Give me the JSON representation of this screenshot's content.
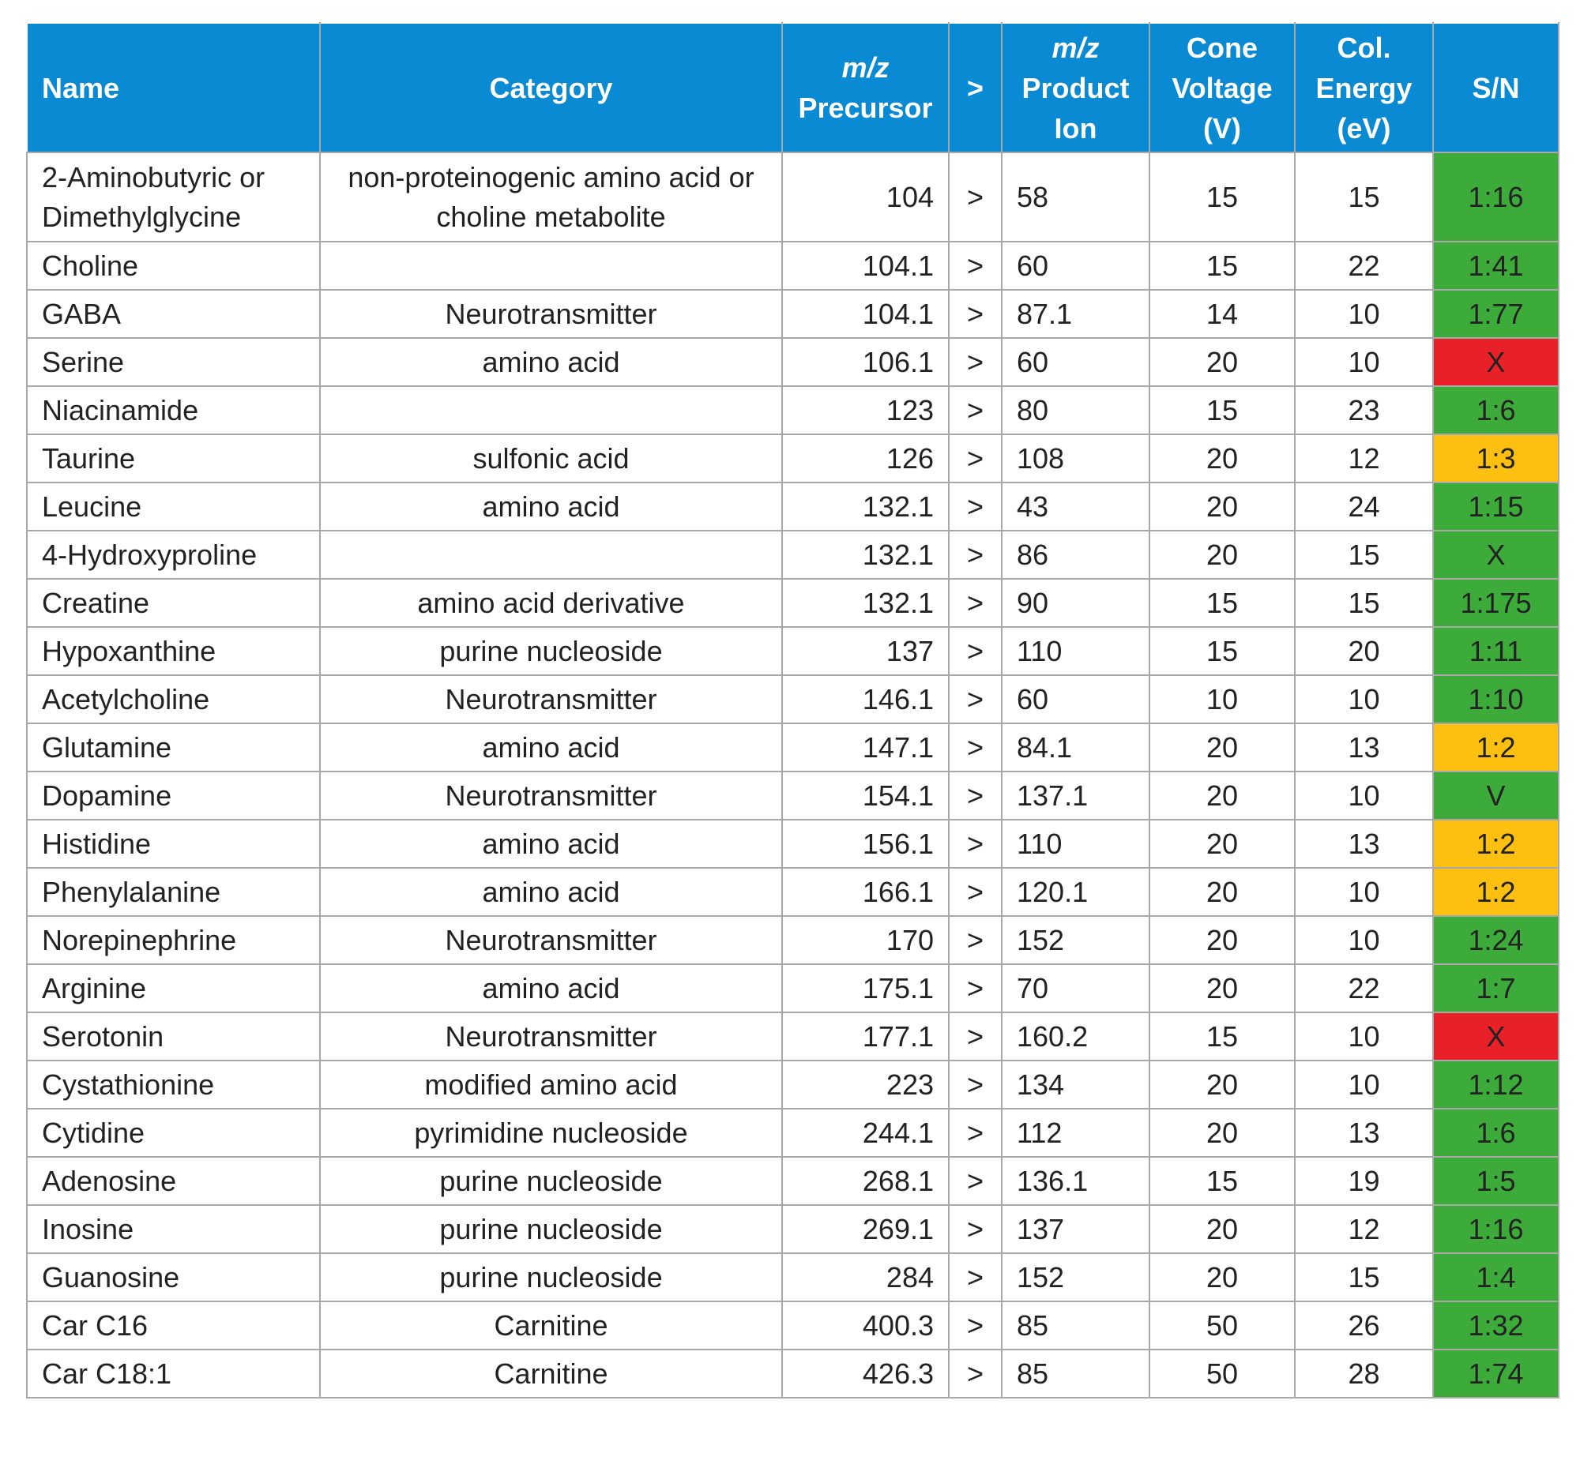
{
  "table": {
    "header": [
      "Name",
      "Category",
      {
        "italic": "m/z",
        "lines": [
          "Precursor"
        ]
      },
      ">",
      {
        "italic": "m/z",
        "lines": [
          "Product",
          "Ion"
        ]
      },
      "Cone Voltage (V)",
      "Col. Energy (eV)",
      "S/N"
    ],
    "rows": [
      [
        "2-Aminobutyric or Dimethylglycine",
        "non-proteinogenic amino acid or choline metabolite",
        "104",
        ">",
        "58",
        "15",
        "15",
        "1:16"
      ],
      [
        "Choline",
        "",
        "104.1",
        ">",
        "60",
        "15",
        "22",
        "1:41"
      ],
      [
        "GABA",
        "Neurotransmitter",
        "104.1",
        ">",
        "87.1",
        "14",
        "10",
        "1:77"
      ],
      [
        "Serine",
        "amino acid",
        "106.1",
        ">",
        "60",
        "20",
        "10",
        "X"
      ],
      [
        "Niacinamide",
        "",
        "123",
        ">",
        "80",
        "15",
        "23",
        "1:6"
      ],
      [
        "Taurine",
        "sulfonic acid",
        "126",
        ">",
        "108",
        "20",
        "12",
        "1:3"
      ],
      [
        "Leucine",
        "amino acid",
        "132.1",
        ">",
        "43",
        "20",
        "24",
        "1:15"
      ],
      [
        "4-Hydroxyproline",
        "",
        "132.1",
        ">",
        "86",
        "20",
        "15",
        "X"
      ],
      [
        "Creatine",
        "amino acid derivative",
        "132.1",
        ">",
        "90",
        "15",
        "15",
        "1:175"
      ],
      [
        "Hypoxanthine",
        "purine nucleoside",
        "137",
        ">",
        "110",
        "15",
        "20",
        "1:11"
      ],
      [
        "Acetylcholine",
        "Neurotransmitter",
        "146.1",
        ">",
        "60",
        "10",
        "10",
        "1:10"
      ],
      [
        "Glutamine",
        "amino acid",
        "147.1",
        ">",
        "84.1",
        "20",
        "13",
        "1:2"
      ],
      [
        "Dopamine",
        "Neurotransmitter",
        "154.1",
        ">",
        "137.1",
        "20",
        "10",
        "V"
      ],
      [
        "Histidine",
        "amino acid",
        "156.1",
        ">",
        "110",
        "20",
        "13",
        "1:2"
      ],
      [
        "Phenylalanine",
        "amino acid",
        "166.1",
        ">",
        "120.1",
        "20",
        "10",
        "1:2"
      ],
      [
        "Norepinephrine",
        "Neurotransmitter",
        "170",
        ">",
        "152",
        "20",
        "10",
        "1:24"
      ],
      [
        "Arginine",
        "amino acid",
        "175.1",
        ">",
        "70",
        "20",
        "22",
        "1:7"
      ],
      [
        "Serotonin",
        "Neurotransmitter",
        "177.1",
        ">",
        "160.2",
        "15",
        "10",
        "X"
      ],
      [
        "Cystathionine",
        "modified amino acid",
        "223",
        ">",
        "134",
        "20",
        "10",
        "1:12"
      ],
      [
        "Cytidine",
        "pyrimidine nucleoside",
        "244.1",
        ">",
        "112",
        "20",
        "13",
        "1:6"
      ],
      [
        "Adenosine",
        "purine nucleoside",
        "268.1",
        ">",
        "136.1",
        "15",
        "19",
        "1:5"
      ],
      [
        "Inosine",
        "purine nucleoside",
        "269.1",
        ">",
        "137",
        "20",
        "12",
        "1:16"
      ],
      [
        "Guanosine",
        "purine nucleoside",
        "284",
        ">",
        "152",
        "20",
        "15",
        "1:4"
      ],
      [
        "Car C16",
        "Carnitine",
        "400.3",
        ">",
        "85",
        "50",
        "26",
        "1:32"
      ],
      [
        "Car C18:1",
        "Carnitine",
        "426.3",
        ">",
        "85",
        "50",
        "28",
        "1:74"
      ]
    ],
    "sn_colors": [
      "#3cab3a",
      "#3cab3a",
      "#3cab3a",
      "#e82128",
      "#3cab3a",
      "#fdc010",
      "#3cab3a",
      "#3cab3a",
      "#3cab3a",
      "#3cab3a",
      "#3cab3a",
      "#fdc010",
      "#3cab3a",
      "#fdc010",
      "#fdc010",
      "#3cab3a",
      "#3cab3a",
      "#e82128",
      "#3cab3a",
      "#3cab3a",
      "#3cab3a",
      "#3cab3a",
      "#3cab3a",
      "#3cab3a",
      "#3cab3a"
    ]
  }
}
